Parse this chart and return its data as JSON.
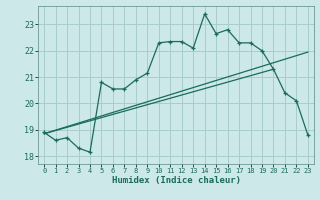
{
  "xlabel": "Humidex (Indice chaleur)",
  "bg_color": "#cce8e8",
  "grid_color": "#a8cccc",
  "line_color": "#1a6b5e",
  "xlim": [
    -0.5,
    23.5
  ],
  "ylim": [
    17.7,
    23.7
  ],
  "yticks": [
    18,
    19,
    20,
    21,
    22,
    23
  ],
  "xticks": [
    0,
    1,
    2,
    3,
    4,
    5,
    6,
    7,
    8,
    9,
    10,
    11,
    12,
    13,
    14,
    15,
    16,
    17,
    18,
    19,
    20,
    21,
    22,
    23
  ],
  "line1_x": [
    0,
    1,
    2,
    3,
    4,
    5,
    6,
    7,
    8,
    9,
    10,
    11,
    12,
    13,
    14,
    15,
    16,
    17,
    18,
    19,
    20,
    21,
    22,
    23
  ],
  "line1_y": [
    18.9,
    18.6,
    18.7,
    18.3,
    18.15,
    20.8,
    20.55,
    20.55,
    20.9,
    21.15,
    22.3,
    22.35,
    22.35,
    22.1,
    23.4,
    22.65,
    22.8,
    22.3,
    22.3,
    22.0,
    21.3,
    20.4,
    20.1,
    18.8
  ],
  "line2_x": [
    0,
    23
  ],
  "line2_y": [
    18.85,
    21.95
  ],
  "line3_x": [
    0,
    20
  ],
  "line3_y": [
    18.85,
    21.3
  ]
}
